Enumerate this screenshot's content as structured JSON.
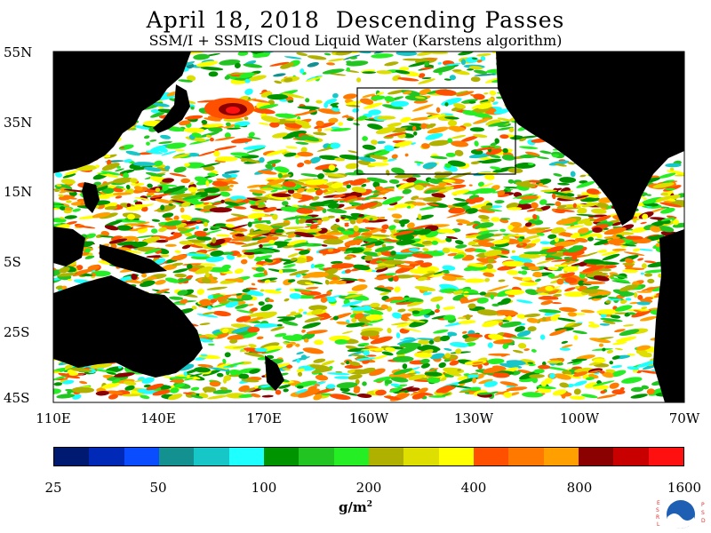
{
  "title": "April 18, 2018  Descending Passes",
  "subtitle": "SSM/I + SSMIS Cloud Liquid Water (Karstens algorithm)",
  "lat_labels": [
    "55N",
    "35N",
    "15N",
    "5S",
    "25S",
    "45S"
  ],
  "lon_labels": [
    "110E",
    "140E",
    "170E",
    "160W",
    "130W",
    "100W",
    "70W"
  ],
  "colorbar": {
    "colors": [
      "#001a72",
      "#0029b8",
      "#0a4cff",
      "#139090",
      "#17c6c6",
      "#1effff",
      "#009400",
      "#22c422",
      "#25ee25",
      "#b0b000",
      "#dede00",
      "#ffff00",
      "#ff5000",
      "#ff7800",
      "#ffa000",
      "#8b0000",
      "#c80000",
      "#ff1010"
    ],
    "labels": [
      "25",
      "50",
      "100",
      "200",
      "400",
      "800",
      "1600"
    ]
  },
  "units": "g/m",
  "units_sup": "2",
  "map": {
    "land_color": "#000000",
    "ocean_color": "#ffffff",
    "box_color": "#000000"
  },
  "logo": {
    "left_letters": "ESRL",
    "right_letters": "PSD",
    "accent": "#1e5fb4",
    "letter_color": "#e03030"
  }
}
